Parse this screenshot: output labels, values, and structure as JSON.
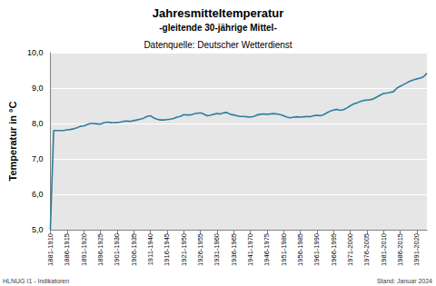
{
  "chart_data": {
    "type": "line",
    "title": "Jahresmitteltemperatur",
    "subtitle": "-gleitende 30-jährige Mittel-",
    "source": "Datenquelle: Deutscher Wetterdienst",
    "y_label": "Temperatur in °C",
    "footer_left": "HLNUG I1 - Indikatoren",
    "footer_right": "Stand: Januar 2024",
    "color": "#2b7f9e",
    "grid": true,
    "categories": [
      "1881-1910",
      null,
      null,
      null,
      null,
      "1886-1915",
      null,
      null,
      null,
      null,
      "1891-1920",
      null,
      null,
      null,
      null,
      "1896-1925",
      null,
      null,
      null,
      null,
      "1901-1930",
      null,
      null,
      null,
      null,
      "1906-1935",
      null,
      null,
      null,
      null,
      "1911-1940",
      null,
      null,
      null,
      null,
      "1916-1945",
      null,
      null,
      null,
      null,
      "1921-1950",
      null,
      null,
      null,
      null,
      "1926-1955",
      null,
      null,
      null,
      null,
      "1931-1960",
      null,
      null,
      null,
      null,
      "1936-1965",
      null,
      null,
      null,
      null,
      "1941-1970",
      null,
      null,
      null,
      null,
      "1946-1975",
      null,
      null,
      null,
      null,
      "1951-1980",
      null,
      null,
      null,
      null,
      "1956-1985",
      null,
      null,
      null,
      null,
      "1961-1990",
      null,
      null,
      null,
      null,
      "1966-1995",
      null,
      null,
      null,
      null,
      "1971-2000",
      null,
      null,
      null,
      null,
      "1976-2005",
      null,
      null,
      null,
      null,
      "1981-2010",
      null,
      null,
      null,
      null,
      "1986-2015",
      null,
      null,
      null,
      null,
      "1991-2020",
      null,
      null,
      null
    ],
    "values": [
      5.0,
      7.8,
      7.8,
      7.8,
      7.8,
      7.82,
      7.83,
      7.85,
      7.88,
      7.92,
      7.93,
      7.97,
      8.0,
      8.0,
      7.99,
      7.98,
      8.02,
      8.04,
      8.03,
      8.02,
      8.03,
      8.04,
      8.06,
      8.07,
      8.06,
      8.08,
      8.1,
      8.12,
      8.15,
      8.2,
      8.22,
      8.16,
      8.12,
      8.1,
      8.1,
      8.11,
      8.12,
      8.14,
      8.18,
      8.2,
      8.25,
      8.24,
      8.24,
      8.27,
      8.29,
      8.3,
      8.27,
      8.22,
      8.23,
      8.26,
      8.28,
      8.27,
      8.3,
      8.31,
      8.26,
      8.24,
      8.22,
      8.2,
      8.2,
      8.19,
      8.18,
      8.2,
      8.24,
      8.26,
      8.27,
      8.26,
      8.27,
      8.28,
      8.27,
      8.25,
      8.22,
      8.18,
      8.16,
      8.18,
      8.19,
      8.18,
      8.19,
      8.2,
      8.19,
      8.22,
      8.23,
      8.22,
      8.25,
      8.3,
      8.35,
      8.38,
      8.4,
      8.37,
      8.39,
      8.44,
      8.5,
      8.55,
      8.58,
      8.62,
      8.65,
      8.66,
      8.67,
      8.7,
      8.75,
      8.8,
      8.85,
      8.86,
      8.88,
      8.9,
      9.0,
      9.05,
      9.1,
      9.15,
      9.2,
      9.23,
      9.26,
      9.28,
      9.32,
      9.42
    ],
    "ylim": [
      5,
      10
    ],
    "yticks": [
      {
        "value": 5,
        "label": "5,0"
      },
      {
        "value": 6,
        "label": "6,0"
      },
      {
        "value": 7,
        "label": "7,0"
      },
      {
        "value": 8,
        "label": "8,0"
      },
      {
        "value": 9,
        "label": "9,0"
      },
      {
        "value": 10,
        "label": "10,0"
      }
    ]
  }
}
